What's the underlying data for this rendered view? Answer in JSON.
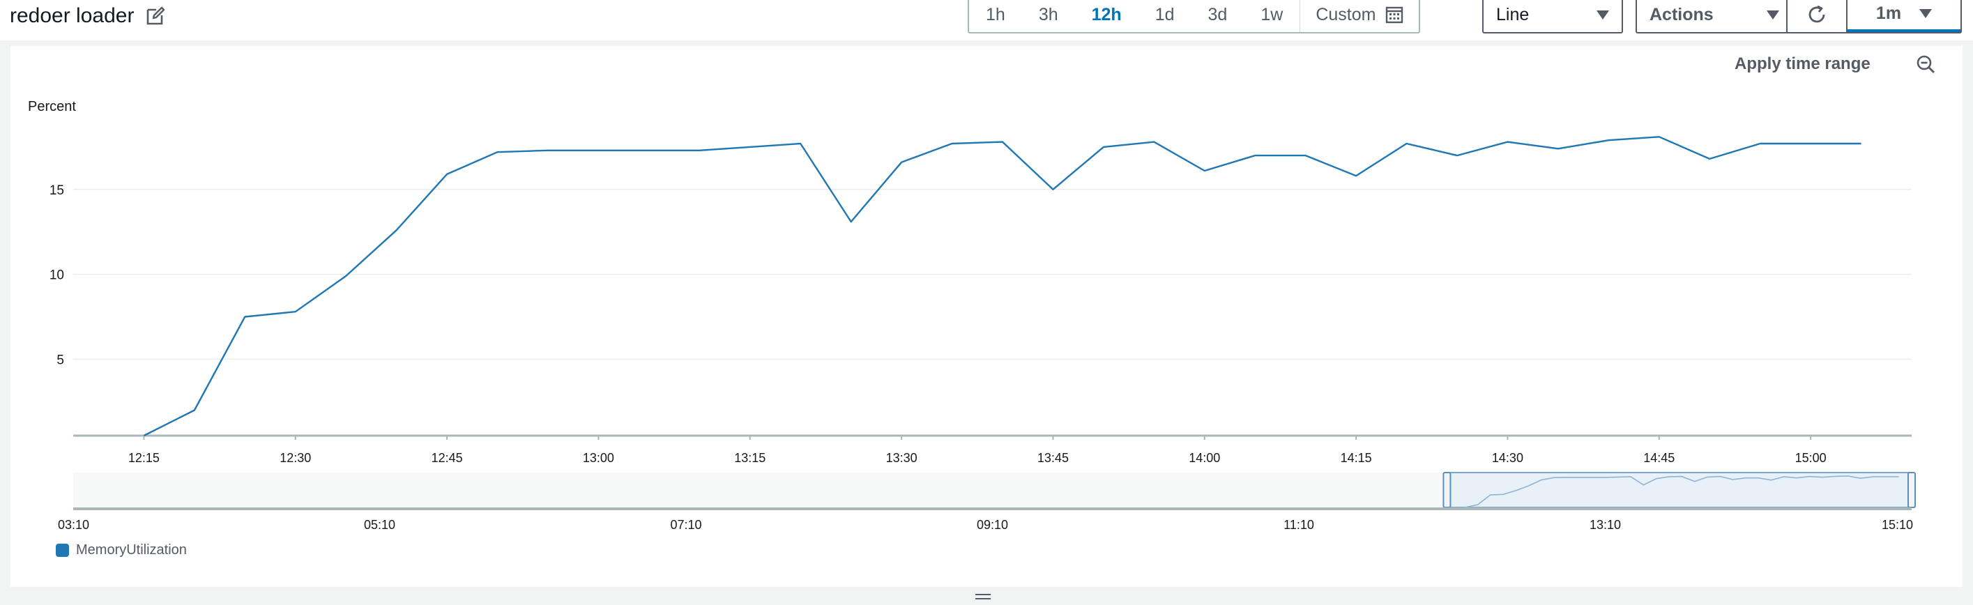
{
  "widget": {
    "title": "redoer loader",
    "edit_icon": "edit-icon"
  },
  "toolbar": {
    "ranges": [
      "1h",
      "3h",
      "12h",
      "1d",
      "3d",
      "1w"
    ],
    "active_range": "12h",
    "custom_label": "Custom",
    "chart_type": "Line",
    "actions_label": "Actions",
    "refresh_interval": "1m",
    "apply_range_label": "Apply time range"
  },
  "colors": {
    "series": "#1f77b4",
    "accent": "#0073bb"
  },
  "legend": {
    "items": [
      "MemoryUtilization"
    ]
  },
  "chart_data": {
    "type": "line",
    "ylabel": "Percent",
    "ylim": [
      0.5,
      20
    ],
    "yticks": [
      5,
      10,
      15
    ],
    "xticks": [
      "12:15",
      "12:30",
      "12:45",
      "13:00",
      "13:15",
      "13:30",
      "13:45",
      "14:00",
      "14:15",
      "14:30",
      "14:45",
      "15:00"
    ],
    "xlim": [
      "12:08",
      "15:10"
    ],
    "grid": true,
    "legend_position": "bottom-left",
    "series": [
      {
        "name": "MemoryUtilization",
        "x": [
          "12:15",
          "12:20",
          "12:25",
          "12:30",
          "12:35",
          "12:40",
          "12:45",
          "12:50",
          "12:55",
          "13:00",
          "13:05",
          "13:10",
          "13:15",
          "13:20",
          "13:25",
          "13:30",
          "13:35",
          "13:40",
          "13:45",
          "13:50",
          "13:55",
          "14:00",
          "14:05",
          "14:10",
          "14:15",
          "14:20",
          "14:25",
          "14:30",
          "14:35",
          "14:40",
          "14:45",
          "14:50",
          "14:55",
          "15:00",
          "15:05"
        ],
        "values": [
          0.5,
          2.0,
          7.5,
          7.8,
          9.9,
          12.6,
          15.9,
          17.2,
          17.3,
          17.3,
          17.3,
          17.3,
          17.5,
          17.7,
          13.1,
          16.6,
          17.7,
          17.8,
          15.0,
          17.5,
          17.8,
          16.1,
          17.0,
          17.0,
          15.8,
          17.7,
          17.0,
          17.8,
          17.4,
          17.9,
          18.1,
          16.8,
          17.7,
          17.7,
          17.7
        ]
      }
    ]
  },
  "navigator": {
    "xticks": [
      "03:10",
      "05:10",
      "07:10",
      "09:10",
      "11:10",
      "13:10",
      "15:10"
    ],
    "selection": [
      "12:08",
      "15:10"
    ]
  }
}
